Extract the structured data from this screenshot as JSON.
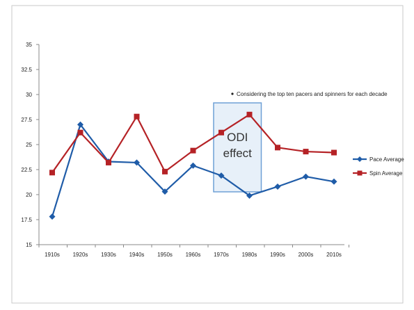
{
  "chart_data": {
    "type": "line",
    "title": "",
    "xlabel": "",
    "ylabel": "",
    "categories": [
      "1910s",
      "1920s",
      "1930s",
      "1940s",
      "1950s",
      "1960s",
      "1970s",
      "1980s",
      "1990s",
      "2000s",
      "2010s"
    ],
    "ylim": [
      15,
      35
    ],
    "yticks": [
      "15",
      "17.5",
      "20",
      "22.5",
      "25",
      "27.5",
      "30",
      "32.5",
      "35"
    ],
    "grid": false,
    "legend_position": "right",
    "series": [
      {
        "name": "Pace Average",
        "color": "#1f5ca8",
        "marker": "diamond",
        "values": [
          17.8,
          27.0,
          23.3,
          23.2,
          20.3,
          22.9,
          21.9,
          19.9,
          20.8,
          21.8,
          21.3
        ]
      },
      {
        "name": "Spin Average",
        "color": "#b52226",
        "marker": "square",
        "values": [
          22.2,
          26.2,
          23.2,
          27.8,
          22.3,
          24.4,
          26.2,
          28.0,
          24.7,
          24.3,
          24.2
        ]
      }
    ],
    "annotations": {
      "note": "Considering the top ten pacers and spinners for each decade",
      "highlight_label_line1": "ODI",
      "highlight_label_line2": "effect",
      "highlight_range": [
        "1970s",
        "1980s"
      ]
    }
  }
}
